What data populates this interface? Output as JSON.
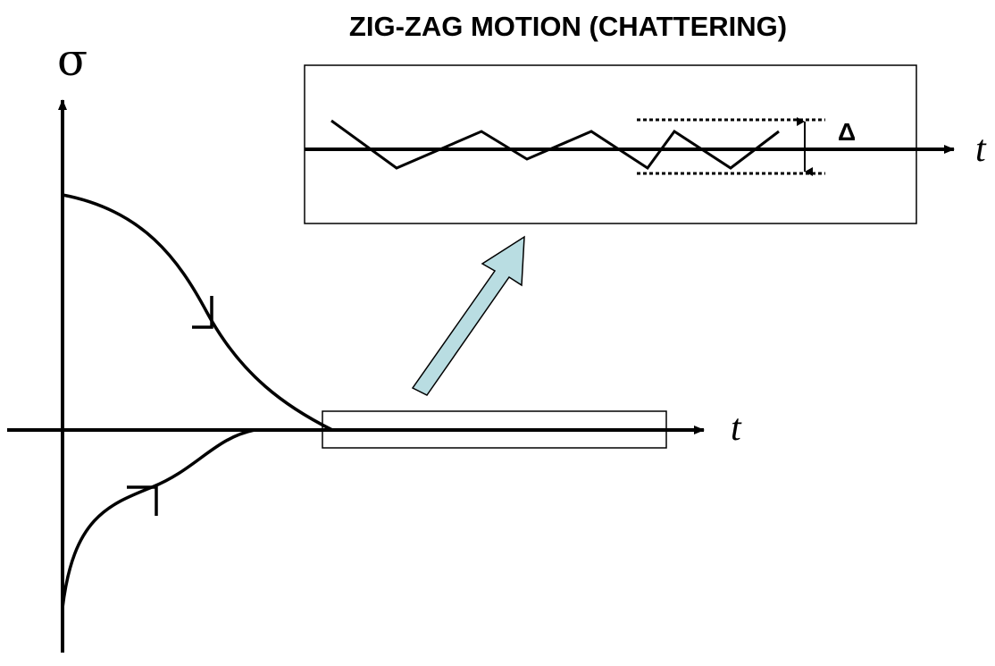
{
  "diagram": {
    "title": "ZIG-ZAG MOTION (CHATTERING)",
    "y_axis_label": "σ",
    "x_axis_label": "t",
    "inset_x_axis_label": "t",
    "band_label": "Δ",
    "colors": {
      "stroke": "#000000",
      "arrow_fill": "#b9dde2",
      "background": "#ffffff"
    }
  }
}
